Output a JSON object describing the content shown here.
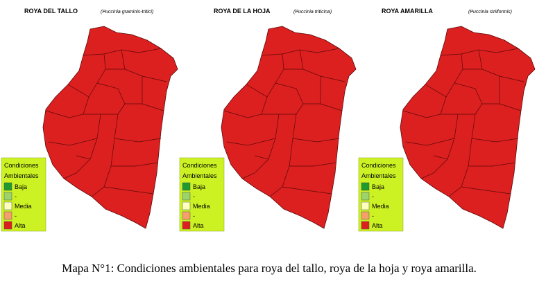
{
  "maps": [
    {
      "title": "ROYA DEL TALLO",
      "subtitle": "(Puccinia graminis-tritici)",
      "fill": "#dc1f1f",
      "legend": {
        "title": [
          "Condiciones",
          "Ambientales"
        ],
        "items": [
          {
            "label": "Baja",
            "color": "#1e9a2e"
          },
          {
            "label": "-",
            "color": "#9ad46a"
          },
          {
            "label": "Media",
            "color": "#ffffc0"
          },
          {
            "label": "-",
            "color": "#f5a06a"
          },
          {
            "label": "Alta",
            "color": "#dc1f1f"
          }
        ]
      }
    },
    {
      "title": "ROYA DE LA HOJA",
      "subtitle": "(Puccinia triticina)",
      "fill": "#dc1f1f",
      "legend": {
        "title": [
          "Condiciones",
          "Ambientales"
        ],
        "items": [
          {
            "label": "Baja",
            "color": "#1e9a2e"
          },
          {
            "label": "-",
            "color": "#9ad46a"
          },
          {
            "label": "Media",
            "color": "#ffffc0"
          },
          {
            "label": "-",
            "color": "#f5a06a"
          },
          {
            "label": "Alta",
            "color": "#dc1f1f"
          }
        ]
      }
    },
    {
      "title": "ROYA AMARILLA",
      "subtitle": "(Puccinia striiformis)",
      "fill": "#dc1f1f",
      "legend": {
        "title": [
          "Condiciones",
          "Ambientales"
        ],
        "items": [
          {
            "label": "Baja",
            "color": "#1e9a2e"
          },
          {
            "label": "-",
            "color": "#9ad46a"
          },
          {
            "label": "Media",
            "color": "#ffffc0"
          },
          {
            "label": "-",
            "color": "#f5a06a"
          },
          {
            "label": "Alta",
            "color": "#dc1f1f"
          }
        ]
      }
    }
  ],
  "caption": "Mapa N°1: Condiciones ambientales para roya del tallo, roya de la hoja y roya amarilla."
}
